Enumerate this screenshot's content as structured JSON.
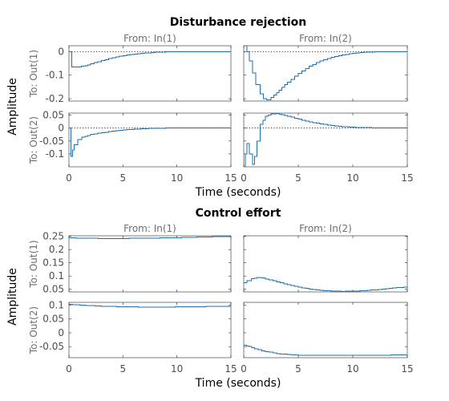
{
  "chart_data": [
    {
      "type": "line",
      "title": "Disturbance rejection",
      "ylabel": "Amplitude",
      "xlabel": "Time (seconds)",
      "columns": [
        "From: In(1)",
        "From: In(2)"
      ],
      "rows": [
        "To: Out(1)",
        "To: Out(2)"
      ],
      "xlim": [
        0,
        15
      ],
      "xticks": [
        "0",
        "5",
        "10",
        "15"
      ],
      "rows_axes": [
        {
          "ylim": [
            -0.21,
            0.025
          ],
          "yticks": [
            0,
            -0.1,
            -0.2
          ],
          "ytick_labels": [
            "0",
            "-0.1",
            "-0.2"
          ]
        },
        {
          "ylim": [
            -0.15,
            0.058
          ],
          "yticks": [
            0.05,
            0,
            -0.05,
            -0.1
          ],
          "ytick_labels": [
            "0.05",
            "0",
            "-0.05",
            "-0.1"
          ]
        }
      ],
      "zero_line": true,
      "series": [
        {
          "row": 0,
          "col": 0,
          "x": [
            0,
            0.2,
            0.25,
            0.8,
            1.5,
            2,
            3,
            4,
            5,
            6,
            7,
            8,
            9,
            10,
            12,
            15
          ],
          "y": [
            0,
            0,
            -0.065,
            -0.065,
            -0.06,
            -0.052,
            -0.038,
            -0.026,
            -0.017,
            -0.01,
            -0.006,
            -0.003,
            -0.001,
            0,
            0,
            0
          ]
        },
        {
          "row": 1,
          "col": 0,
          "x": [
            0,
            0.15,
            0.2,
            0.35,
            0.5,
            0.8,
            1.2,
            2,
            3,
            4,
            5,
            6,
            7,
            8,
            9,
            10,
            12,
            15
          ],
          "y": [
            0,
            0,
            -0.11,
            -0.085,
            -0.065,
            -0.045,
            -0.035,
            -0.025,
            -0.018,
            -0.012,
            -0.007,
            -0.004,
            -0.002,
            -0.001,
            0,
            0,
            0,
            0
          ]
        },
        {
          "row": 0,
          "col": 1,
          "x": [
            0,
            0.2,
            0.3,
            0.5,
            0.8,
            1.1,
            1.5,
            1.8,
            2.1,
            2.5,
            3,
            3.5,
            4,
            5,
            6,
            7,
            8,
            9,
            10,
            11,
            12,
            13,
            14,
            15
          ],
          "y": [
            0.04,
            0.04,
            0.0,
            -0.04,
            -0.09,
            -0.14,
            -0.18,
            -0.2,
            -0.205,
            -0.195,
            -0.175,
            -0.152,
            -0.13,
            -0.092,
            -0.062,
            -0.04,
            -0.025,
            -0.014,
            -0.007,
            -0.003,
            -0.001,
            0,
            0,
            0
          ]
        },
        {
          "row": 1,
          "col": 1,
          "x": [
            0,
            0.15,
            0.3,
            0.5,
            0.8,
            1.0,
            1.2,
            1.5,
            2,
            2.5,
            3,
            3.5,
            4,
            5,
            6,
            7,
            8,
            9,
            10,
            12,
            15
          ],
          "y": [
            -0.15,
            -0.1,
            -0.06,
            -0.1,
            -0.14,
            -0.11,
            -0.05,
            0.015,
            0.045,
            0.055,
            0.056,
            0.052,
            0.046,
            0.034,
            0.024,
            0.016,
            0.01,
            0.006,
            0.003,
            0.001,
            0
          ]
        }
      ]
    },
    {
      "type": "line",
      "title": "Control effort",
      "ylabel": "Amplitude",
      "xlabel": "Time (seconds)",
      "columns": [
        "From: In(1)",
        "From: In(2)"
      ],
      "rows": [
        "To: Out(1)",
        "To: Out(2)"
      ],
      "xlim": [
        0,
        15
      ],
      "xticks": [
        "0",
        "5",
        "10",
        "15"
      ],
      "rows_axes": [
        {
          "ylim": [
            0.04,
            0.252
          ],
          "yticks": [
            0.25,
            0.2,
            0.15,
            0.1,
            0.05
          ],
          "ytick_labels": [
            "0.25",
            "0.2",
            "0.15",
            "0.1",
            "0.05"
          ]
        },
        {
          "ylim": [
            -0.09,
            0.11
          ],
          "yticks": [
            0.1,
            0.05,
            0,
            -0.05
          ],
          "ytick_labels": [
            "0.1",
            "0.05",
            "0",
            "-0.05"
          ]
        }
      ],
      "zero_line": false,
      "series": [
        {
          "row": 0,
          "col": 0,
          "x": [
            0,
            1,
            3,
            5,
            7,
            9,
            11,
            13,
            15
          ],
          "y": [
            0.245,
            0.243,
            0.242,
            0.242,
            0.243,
            0.244,
            0.246,
            0.248,
            0.25
          ]
        },
        {
          "row": 1,
          "col": 0,
          "x": [
            0,
            1,
            3,
            5,
            7,
            9,
            11,
            13,
            15
          ],
          "y": [
            0.103,
            0.1,
            0.096,
            0.094,
            0.093,
            0.093,
            0.094,
            0.095,
            0.096
          ]
        },
        {
          "row": 0,
          "col": 1,
          "x": [
            0,
            0.3,
            0.7,
            1.2,
            1.6,
            2,
            3,
            4,
            5,
            6,
            7,
            8,
            9,
            10,
            11,
            12,
            13,
            14,
            15
          ],
          "y": [
            0.075,
            0.082,
            0.09,
            0.094,
            0.093,
            0.089,
            0.078,
            0.067,
            0.058,
            0.051,
            0.046,
            0.043,
            0.042,
            0.043,
            0.045,
            0.048,
            0.052,
            0.056,
            0.06
          ]
        },
        {
          "row": 1,
          "col": 1,
          "x": [
            0,
            0.5,
            1,
            2,
            3,
            4,
            5,
            6,
            7,
            8,
            10,
            12,
            15
          ],
          "y": [
            -0.045,
            -0.05,
            -0.058,
            -0.068,
            -0.075,
            -0.079,
            -0.081,
            -0.082,
            -0.082,
            -0.082,
            -0.082,
            -0.081,
            -0.08
          ]
        }
      ]
    }
  ]
}
